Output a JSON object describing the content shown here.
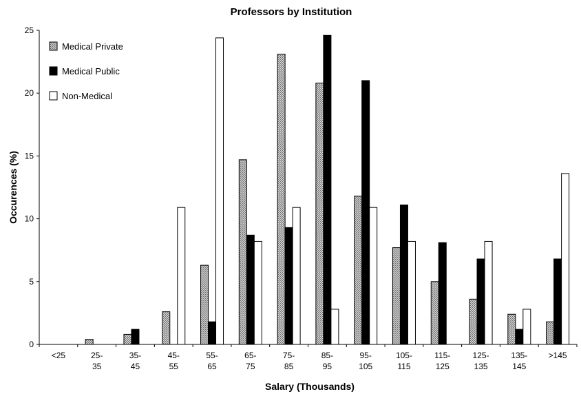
{
  "chart_data": {
    "type": "bar",
    "title": "Professors by Institution",
    "xlabel": "Salary (Thousands)",
    "ylabel": "Occurences (%)",
    "ylim": [
      0,
      25
    ],
    "yticks": [
      0,
      5,
      10,
      15,
      20,
      25
    ],
    "grid": false,
    "legend_position": "top-left",
    "categories": [
      "<25",
      "25-\n35",
      "35-\n45",
      "45-\n55",
      "55-\n65",
      "65-\n75",
      "75-\n85",
      "85-\n95",
      "95-\n105",
      "105-\n115",
      "115-\n125",
      "125-\n135",
      "135-\n145",
      ">145"
    ],
    "series": [
      {
        "name": "Medical Private",
        "pattern": "hatched",
        "color": "#9a9a9a",
        "values": [
          0,
          0.4,
          0.8,
          2.6,
          6.3,
          14.7,
          23.1,
          20.8,
          11.8,
          7.7,
          5.0,
          3.6,
          2.4,
          1.8
        ]
      },
      {
        "name": "Medical Public",
        "pattern": "solid",
        "color": "#000000",
        "values": [
          0,
          0,
          1.2,
          0,
          1.8,
          8.7,
          9.3,
          24.6,
          21.0,
          11.1,
          8.1,
          6.8,
          1.2,
          6.8
        ]
      },
      {
        "name": "Non-Medical",
        "pattern": "empty",
        "color": "#ffffff",
        "values": [
          0,
          0,
          0,
          10.9,
          24.4,
          8.2,
          10.9,
          2.8,
          10.9,
          8.2,
          0,
          8.2,
          2.8,
          13.6
        ]
      }
    ]
  }
}
